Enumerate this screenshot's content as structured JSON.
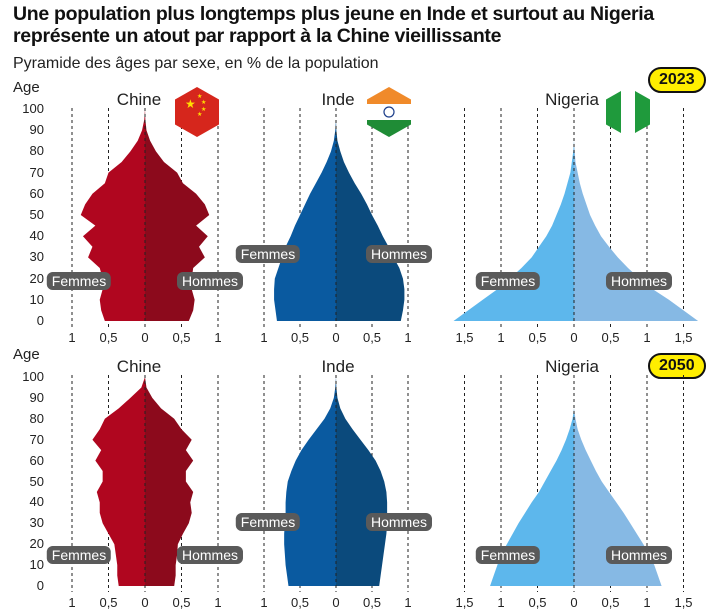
{
  "title": "Une population plus longtemps plus jeune en Inde et surtout au Nigeria représente un atout par rapport à la Chine vieillissante",
  "subtitle": "Pyramide des âges par sexe, en % de la population",
  "age_label": "Age",
  "age_ticks": [
    "0",
    "10",
    "20",
    "30",
    "40",
    "50",
    "60",
    "70",
    "80",
    "90",
    "100"
  ],
  "labels": {
    "women": "Femmes",
    "men": "Hommes"
  },
  "colors": {
    "china_women": "#b0061f",
    "china_men": "#8c0a1c",
    "india_women": "#0a5aa0",
    "india_men": "#0b4a7c",
    "nigeria_women": "#5db7ec",
    "nigeria_men": "#86b9e4",
    "year_badge": "#ffee00",
    "label_bg": "#5a5a5a"
  },
  "rows": [
    {
      "year": "2023"
    },
    {
      "year": "2050"
    }
  ],
  "chart_data": [
    {
      "type": "population-pyramid",
      "country": "Chine",
      "year": "2023",
      "xlabel": "",
      "ylabel": "Age",
      "x_ticks": [
        "1",
        "0,5",
        "0",
        "0,5",
        "1"
      ],
      "xlim": [
        -1,
        1
      ],
      "ylim": [
        0,
        100
      ],
      "ages": [
        0,
        5,
        10,
        15,
        20,
        25,
        30,
        35,
        40,
        45,
        50,
        55,
        60,
        65,
        70,
        75,
        80,
        85,
        90,
        95,
        100
      ],
      "women": [
        0.55,
        0.6,
        0.62,
        0.58,
        0.58,
        0.62,
        0.78,
        0.72,
        0.85,
        0.68,
        0.88,
        0.82,
        0.72,
        0.55,
        0.5,
        0.32,
        0.2,
        0.1,
        0.04,
        0.01,
        0
      ],
      "men": [
        0.6,
        0.66,
        0.68,
        0.64,
        0.64,
        0.66,
        0.82,
        0.74,
        0.86,
        0.7,
        0.88,
        0.82,
        0.7,
        0.52,
        0.44,
        0.26,
        0.15,
        0.07,
        0.02,
        0.005,
        0
      ]
    },
    {
      "type": "population-pyramid",
      "country": "Inde",
      "year": "2023",
      "xlabel": "",
      "ylabel": "Age",
      "x_ticks": [
        "1",
        "0,5",
        "0",
        "0,5",
        "1"
      ],
      "xlim": [
        -1,
        1
      ],
      "ylim": [
        0,
        100
      ],
      "ages": [
        0,
        5,
        10,
        15,
        20,
        25,
        30,
        35,
        40,
        45,
        50,
        55,
        60,
        65,
        70,
        75,
        80,
        85,
        90,
        95,
        100
      ],
      "women": [
        0.82,
        0.84,
        0.86,
        0.86,
        0.85,
        0.8,
        0.75,
        0.7,
        0.63,
        0.57,
        0.5,
        0.43,
        0.36,
        0.28,
        0.2,
        0.13,
        0.07,
        0.03,
        0.01,
        0,
        0
      ],
      "men": [
        0.9,
        0.93,
        0.95,
        0.95,
        0.93,
        0.88,
        0.8,
        0.73,
        0.65,
        0.58,
        0.5,
        0.43,
        0.35,
        0.26,
        0.18,
        0.11,
        0.06,
        0.02,
        0.005,
        0,
        0
      ]
    },
    {
      "type": "population-pyramid",
      "country": "Nigeria",
      "year": "2023",
      "xlabel": "",
      "ylabel": "Age",
      "x_ticks": [
        "1,5",
        "1",
        "0,5",
        "0",
        "0,5",
        "1",
        "1,5"
      ],
      "xlim": [
        -1.6,
        1.6
      ],
      "ylim": [
        0,
        100
      ],
      "ages": [
        0,
        5,
        10,
        15,
        20,
        25,
        30,
        35,
        40,
        45,
        50,
        55,
        60,
        65,
        70,
        75,
        80,
        85,
        90,
        95,
        100
      ],
      "women": [
        1.65,
        1.45,
        1.25,
        1.05,
        0.88,
        0.72,
        0.58,
        0.48,
        0.38,
        0.3,
        0.24,
        0.18,
        0.13,
        0.09,
        0.05,
        0.03,
        0.01,
        0,
        0,
        0,
        0
      ],
      "men": [
        1.7,
        1.5,
        1.3,
        1.08,
        0.9,
        0.74,
        0.6,
        0.48,
        0.37,
        0.29,
        0.22,
        0.17,
        0.12,
        0.08,
        0.05,
        0.02,
        0.01,
        0,
        0,
        0,
        0
      ]
    },
    {
      "type": "population-pyramid",
      "country": "Chine",
      "year": "2050",
      "xlabel": "",
      "ylabel": "Age",
      "x_ticks": [
        "1",
        "0,5",
        "0",
        "0,5",
        "1"
      ],
      "xlim": [
        -1,
        1
      ],
      "ylim": [
        0,
        100
      ],
      "ages": [
        0,
        5,
        10,
        15,
        20,
        25,
        30,
        35,
        40,
        45,
        50,
        55,
        60,
        65,
        70,
        75,
        80,
        85,
        90,
        95,
        100
      ],
      "women": [
        0.36,
        0.38,
        0.38,
        0.4,
        0.42,
        0.5,
        0.58,
        0.62,
        0.62,
        0.66,
        0.58,
        0.58,
        0.68,
        0.6,
        0.72,
        0.62,
        0.55,
        0.36,
        0.2,
        0.05,
        0
      ],
      "men": [
        0.4,
        0.42,
        0.42,
        0.44,
        0.45,
        0.52,
        0.6,
        0.64,
        0.62,
        0.66,
        0.56,
        0.56,
        0.66,
        0.56,
        0.64,
        0.5,
        0.4,
        0.22,
        0.1,
        0.02,
        0
      ]
    },
    {
      "type": "population-pyramid",
      "country": "Inde",
      "year": "2050",
      "xlabel": "",
      "ylabel": "Age",
      "x_ticks": [
        "1",
        "0,5",
        "0",
        "0,5",
        "1"
      ],
      "xlim": [
        -1,
        1
      ],
      "ylim": [
        0,
        100
      ],
      "ages": [
        0,
        5,
        10,
        15,
        20,
        25,
        30,
        35,
        40,
        45,
        50,
        55,
        60,
        65,
        70,
        75,
        80,
        85,
        90,
        95,
        100
      ],
      "women": [
        0.66,
        0.68,
        0.7,
        0.71,
        0.72,
        0.72,
        0.71,
        0.7,
        0.7,
        0.69,
        0.67,
        0.62,
        0.56,
        0.48,
        0.38,
        0.27,
        0.16,
        0.08,
        0.03,
        0.01,
        0
      ],
      "men": [
        0.6,
        0.62,
        0.64,
        0.66,
        0.68,
        0.7,
        0.71,
        0.71,
        0.71,
        0.7,
        0.67,
        0.62,
        0.55,
        0.45,
        0.34,
        0.23,
        0.13,
        0.06,
        0.02,
        0.005,
        0
      ]
    },
    {
      "type": "population-pyramid",
      "country": "Nigeria",
      "year": "2050",
      "xlabel": "",
      "ylabel": "Age",
      "x_ticks": [
        "1,5",
        "1",
        "0,5",
        "0",
        "0,5",
        "1",
        "1,5"
      ],
      "xlim": [
        -1.6,
        1.6
      ],
      "ylim": [
        0,
        100
      ],
      "ages": [
        0,
        5,
        10,
        15,
        20,
        25,
        30,
        35,
        40,
        45,
        50,
        55,
        60,
        65,
        70,
        75,
        80,
        85,
        90,
        95,
        100
      ],
      "women": [
        1.15,
        1.1,
        1.05,
        1.0,
        0.92,
        0.84,
        0.76,
        0.67,
        0.58,
        0.48,
        0.4,
        0.32,
        0.24,
        0.17,
        0.11,
        0.06,
        0.02,
        0,
        0,
        0,
        0
      ],
      "men": [
        1.2,
        1.15,
        1.1,
        1.03,
        0.95,
        0.86,
        0.77,
        0.68,
        0.58,
        0.48,
        0.38,
        0.3,
        0.23,
        0.16,
        0.1,
        0.05,
        0.02,
        0,
        0,
        0,
        0
      ]
    }
  ]
}
